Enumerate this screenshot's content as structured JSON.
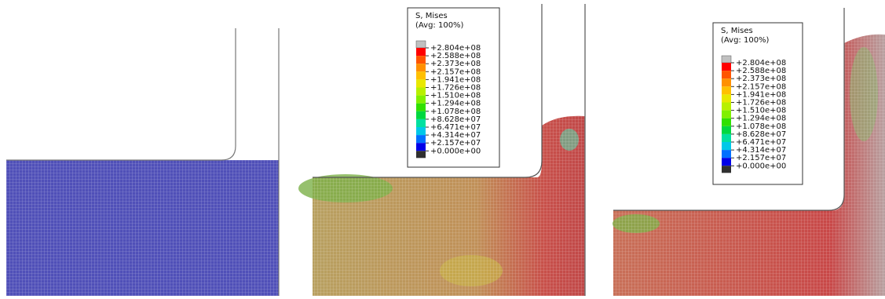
{
  "legends": [
    {
      "title": "S, Mises",
      "subtitle": "(Avg: 100%)",
      "labels": [
        "+2.804e+08",
        "+2.588e+08",
        "+2.373e+08",
        "+2.157e+08",
        "+1.941e+08",
        "+1.726e+08",
        "+1.510e+08",
        "+1.294e+08",
        "+1.078e+08",
        "+8.628e+07",
        "+6.471e+07",
        "+4.314e+07",
        "+2.157e+07",
        "+0.000e+00"
      ]
    },
    {
      "title": "S, Mises",
      "subtitle": "(Avg: 100%)",
      "labels": [
        "+2.804e+08",
        "+2.588e+08",
        "+2.373e+08",
        "+2.157e+08",
        "+1.941e+08",
        "+1.726e+08",
        "+1.510e+08",
        "+1.294e+08",
        "+1.078e+08",
        "+8.628e+07",
        "+6.471e+07",
        "+4.314e+07",
        "+2.157e+07",
        "+0.000e+00"
      ]
    }
  ]
}
